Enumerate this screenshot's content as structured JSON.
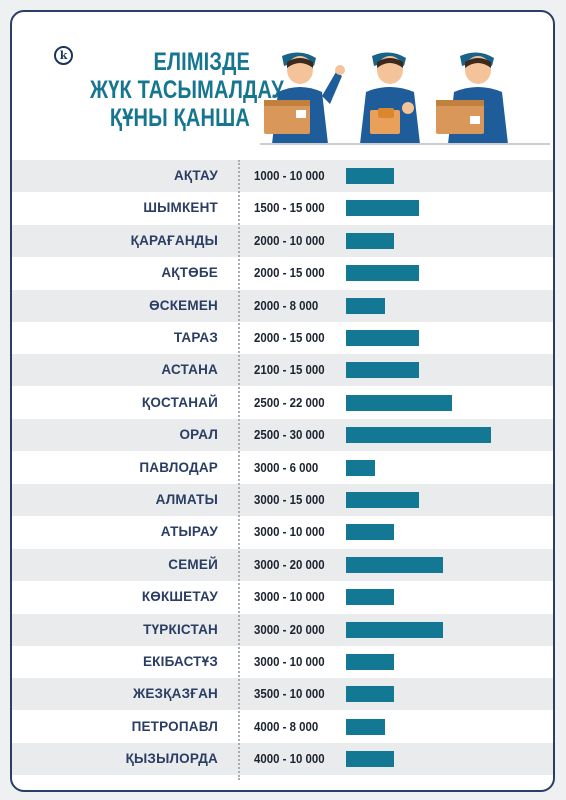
{
  "title": {
    "line1": "ЕЛІМІЗДЕ",
    "line2": "ЖҮК ТАСЫМАЛДАУ",
    "line3": "ҚҰНЫ ҚАНША"
  },
  "logo_letter": "k",
  "colors": {
    "accent": "#137894",
    "title": "#167690",
    "city_text": "#2a3d63",
    "band": "#e9ebec",
    "border": "#2a3f66"
  },
  "chart_data": {
    "type": "bar",
    "orientation": "horizontal",
    "categories": [
      "АҚТАУ",
      "ШЫМКЕНТ",
      "ҚАРАҒАНДЫ",
      "АҚТӨБЕ",
      "ӨСКЕМЕН",
      "ТАРАЗ",
      "АСТАНА",
      "ҚОСТАНАЙ",
      "ОРАЛ",
      "ПАВЛОДАР",
      "АЛМАТЫ",
      "АТЫРАУ",
      "СЕМЕЙ",
      "КӨКШЕТАУ",
      "ТҮРКІСТАН",
      "ЕКІБАСТҰЗ",
      "ЖЕЗҚАЗҒАН",
      "ПЕТРОПАВЛ",
      "ҚЫЗЫЛОРДА"
    ],
    "range_labels": [
      "1000 - 10 000",
      "1500 - 15 000",
      "2000 - 10 000",
      "2000 - 15 000",
      "2000 - 8 000",
      "2000 - 15 000",
      "2100 - 15 000",
      "2500 - 22 000",
      "2500 - 30 000",
      "3000 - 6 000",
      "3000 - 15 000",
      "3000 - 10 000",
      "3000 - 20 000",
      "3000 - 10 000",
      "3000 - 20 000",
      "3000 - 10 000",
      "3500 - 10 000",
      "4000 - 8 000",
      "4000 - 10 000"
    ],
    "min_values": [
      1000,
      1500,
      2000,
      2000,
      2000,
      2000,
      2100,
      2500,
      2500,
      3000,
      3000,
      3000,
      3000,
      3000,
      3000,
      3000,
      3500,
      4000,
      4000
    ],
    "max_values": [
      10000,
      15000,
      10000,
      15000,
      8000,
      15000,
      15000,
      22000,
      30000,
      6000,
      15000,
      10000,
      20000,
      10000,
      20000,
      10000,
      10000,
      8000,
      10000
    ],
    "values": [
      10000,
      15000,
      10000,
      15000,
      8000,
      15000,
      15000,
      22000,
      30000,
      6000,
      15000,
      10000,
      20000,
      10000,
      20000,
      10000,
      10000,
      8000,
      10000
    ],
    "xlim": [
      0,
      30000
    ],
    "grid": false
  }
}
